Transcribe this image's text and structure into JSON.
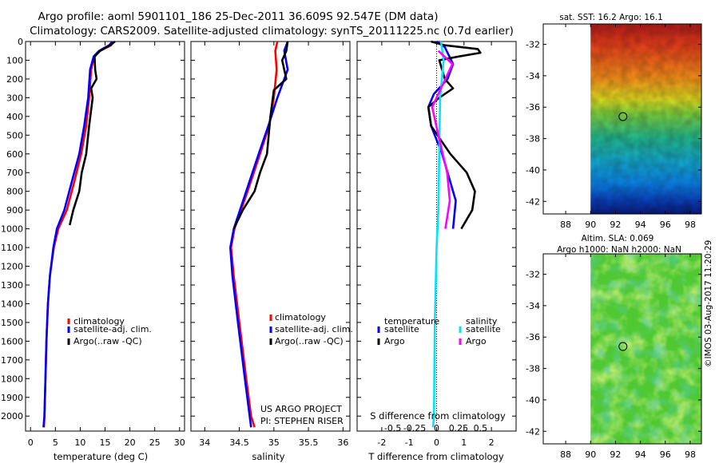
{
  "title_line1": "Argo profile: aoml 5901101_186 25-Dec-2011 36.609S 92.547E (DM data)",
  "title_line2": "Climatology: CARS2009. Satellite-adjusted climatology: synTS_20111225.nc (0.7d earlier)",
  "credit": "©IMOS 03-Aug-2017 11:20:29",
  "colors": {
    "climatology": "#ff0000",
    "satellite": "#0000ff",
    "argo": "#000000",
    "sat_salinity": "#00e5ff",
    "argo_salinity": "#ff00ff"
  },
  "chart_data": [
    {
      "id": "temperature",
      "type": "line",
      "xlabel": "temperature (deg C)",
      "xlim": [
        -1,
        31
      ],
      "ylim": [
        2080,
        0
      ],
      "y_ticks": [
        0,
        100,
        200,
        300,
        400,
        500,
        600,
        700,
        800,
        900,
        1000,
        1100,
        1200,
        1300,
        1400,
        1500,
        1600,
        1700,
        1800,
        1900,
        2000
      ],
      "x_ticks": [
        0,
        5,
        10,
        15,
        20,
        25,
        30
      ],
      "legend": [
        "climatology",
        "satellite-adj. clim.",
        "Argo(..raw -QC)"
      ],
      "series": [
        {
          "name": "climatology",
          "color": "#ff0000",
          "points": [
            [
              16.8,
              0
            ],
            [
              16.2,
              20
            ],
            [
              14,
              50
            ],
            [
              12.8,
              80
            ],
            [
              12.2,
              150
            ],
            [
              11.8,
              300
            ],
            [
              11.2,
              450
            ],
            [
              10.2,
              600
            ],
            [
              8.8,
              750
            ],
            [
              7.3,
              900
            ],
            [
              5.6,
              1000
            ],
            [
              4.7,
              1100
            ],
            [
              3.9,
              1250
            ],
            [
              3.5,
              1400
            ],
            [
              3.2,
              1600
            ],
            [
              3,
              1800
            ],
            [
              2.8,
              2000
            ],
            [
              2.7,
              2060
            ]
          ]
        },
        {
          "name": "satellite-adj. clim.",
          "color": "#0000ff",
          "points": [
            [
              16.5,
              0
            ],
            [
              15.8,
              20
            ],
            [
              13.8,
              50
            ],
            [
              12.7,
              80
            ],
            [
              12,
              150
            ],
            [
              11.6,
              300
            ],
            [
              10.8,
              450
            ],
            [
              9.8,
              600
            ],
            [
              8.3,
              750
            ],
            [
              6.8,
              900
            ],
            [
              5.3,
              1000
            ],
            [
              4.6,
              1100
            ],
            [
              3.9,
              1250
            ],
            [
              3.5,
              1400
            ],
            [
              3.2,
              1600
            ],
            [
              3,
              1800
            ],
            [
              2.8,
              2000
            ],
            [
              2.6,
              2060
            ]
          ]
        },
        {
          "name": "Argo(..raw -QC)",
          "color": "#000000",
          "points": [
            [
              17,
              0
            ],
            [
              16,
              20
            ],
            [
              14,
              50
            ],
            [
              12.9,
              80
            ],
            [
              13,
              150
            ],
            [
              13.3,
              200
            ],
            [
              12.2,
              250
            ],
            [
              12.5,
              300
            ],
            [
              11.8,
              450
            ],
            [
              11.2,
              600
            ],
            [
              10.3,
              700
            ],
            [
              9.8,
              800
            ],
            [
              8.6,
              900
            ],
            [
              7.9,
              980
            ]
          ]
        }
      ]
    },
    {
      "id": "salinity",
      "type": "line",
      "xlabel": "salinity",
      "xlim": [
        33.8,
        36.1
      ],
      "ylim": [
        2080,
        0
      ],
      "x_ticks": [
        34,
        34.5,
        35,
        35.5,
        36
      ],
      "legend": [
        "climatology",
        "satellite-adj. clim.",
        "Argo(..raw -QC)"
      ],
      "annotation": [
        "US ARGO PROJECT",
        "PI: STEPHEN RISER"
      ],
      "series": [
        {
          "name": "climatology",
          "color": "#ff0000",
          "points": [
            [
              35.05,
              0
            ],
            [
              35.02,
              50
            ],
            [
              35.04,
              150
            ],
            [
              35.0,
              300
            ],
            [
              34.93,
              450
            ],
            [
              34.8,
              600
            ],
            [
              34.62,
              800
            ],
            [
              34.43,
              1000
            ],
            [
              34.38,
              1100
            ],
            [
              34.42,
              1250
            ],
            [
              34.5,
              1500
            ],
            [
              34.6,
              1800
            ],
            [
              34.67,
              2000
            ],
            [
              34.72,
              2060
            ]
          ]
        },
        {
          "name": "satellite-adj. clim.",
          "color": "#0000ff",
          "points": [
            [
              35.2,
              0
            ],
            [
              35.15,
              50
            ],
            [
              35.2,
              150
            ],
            [
              35.05,
              300
            ],
            [
              34.92,
              450
            ],
            [
              34.78,
              600
            ],
            [
              34.6,
              800
            ],
            [
              34.42,
              1000
            ],
            [
              34.37,
              1100
            ],
            [
              34.4,
              1250
            ],
            [
              34.48,
              1500
            ],
            [
              34.58,
              1800
            ],
            [
              34.65,
              2000
            ],
            [
              34.67,
              2060
            ]
          ]
        },
        {
          "name": "Argo(..raw -QC)",
          "color": "#000000",
          "points": [
            [
              35.2,
              0
            ],
            [
              35.18,
              50
            ],
            [
              35.12,
              100
            ],
            [
              35.18,
              200
            ],
            [
              35.0,
              260
            ],
            [
              34.95,
              400
            ],
            [
              34.9,
              600
            ],
            [
              34.8,
              700
            ],
            [
              34.72,
              800
            ],
            [
              34.55,
              900
            ],
            [
              34.42,
              1000
            ]
          ]
        }
      ]
    },
    {
      "id": "differences",
      "type": "line",
      "xlabel": "T difference from climatology",
      "x2label": "S difference from climatology",
      "xlim": [
        -2.9,
        2.9
      ],
      "ylim": [
        2080,
        0
      ],
      "x_ticks": [
        -2,
        -1,
        0,
        1,
        2
      ],
      "s_ticks": [
        -0.5,
        -0.25,
        0,
        0.25,
        0.5
      ],
      "legend_headers": [
        "temperature",
        "salinity"
      ],
      "legend": [
        "satellite",
        "Argo",
        "satellite",
        "Argo"
      ],
      "series": [
        {
          "name": "temperature satellite",
          "color": "#0000ff",
          "points": [
            [
              0,
              0
            ],
            [
              0.3,
              30
            ],
            [
              0.4,
              60
            ],
            [
              0.6,
              120
            ],
            [
              0.4,
              200
            ],
            [
              -0.1,
              280
            ],
            [
              -0.3,
              350
            ],
            [
              -0.2,
              450
            ],
            [
              0.2,
              600
            ],
            [
              0.5,
              750
            ],
            [
              0.7,
              850
            ],
            [
              0.6,
              1000
            ]
          ]
        },
        {
          "name": "temperature Argo",
          "color": "#000000",
          "points": [
            [
              -0.2,
              0
            ],
            [
              0.3,
              20
            ],
            [
              1.5,
              40
            ],
            [
              1.6,
              60
            ],
            [
              0.8,
              80
            ],
            [
              0.1,
              100
            ],
            [
              0.3,
              200
            ],
            [
              0.6,
              250
            ],
            [
              0.1,
              300
            ],
            [
              -0.3,
              350
            ],
            [
              -0.2,
              450
            ],
            [
              0.5,
              600
            ],
            [
              1.1,
              700
            ],
            [
              1.4,
              800
            ],
            [
              1.3,
              900
            ],
            [
              0.9,
              1000
            ]
          ]
        },
        {
          "name": "salinity satellite",
          "color": "#00e5ff",
          "points": [
            [
              0.05,
              0
            ],
            [
              0.08,
              100
            ],
            [
              0.04,
              300
            ],
            [
              0.03,
              600
            ],
            [
              0.02,
              900
            ],
            [
              0,
              1100
            ],
            [
              -0.02,
              1500
            ],
            [
              -0.03,
              2000
            ],
            [
              -0.04,
              2060
            ]
          ]
        },
        {
          "name": "salinity Argo",
          "color": "#ff00ff",
          "points": [
            [
              0.02,
              50
            ],
            [
              0.18,
              120
            ],
            [
              0.05,
              250
            ],
            [
              -0.05,
              350
            ],
            [
              0.02,
              500
            ],
            [
              0.12,
              700
            ],
            [
              0.15,
              850
            ],
            [
              0.1,
              1000
            ]
          ]
        }
      ]
    },
    {
      "id": "sst_map",
      "type": "heatmap",
      "title": "sat. SST: 16.2  Argo: 16.1",
      "x_ticks": [
        88,
        90,
        92,
        94,
        96,
        98
      ],
      "y_ticks": [
        -32,
        -34,
        -36,
        -38,
        -40,
        -42
      ],
      "xlim": [
        86.2,
        98.9
      ],
      "ylim": [
        -42.8,
        -30.7
      ],
      "data_xlim": [
        90,
        98.9
      ],
      "marker": [
        92.6,
        -36.6
      ]
    },
    {
      "id": "sla_map",
      "type": "heatmap",
      "title": "Altim. SLA: 0.069",
      "subtitle": "Argo h1000: NaN h2000: NaN",
      "x_ticks": [
        88,
        90,
        92,
        94,
        96,
        98
      ],
      "y_ticks": [
        -32,
        -34,
        -36,
        -38,
        -40,
        -42
      ],
      "xlim": [
        86.2,
        98.9
      ],
      "ylim": [
        -42.8,
        -30.7
      ],
      "data_xlim": [
        90,
        98.9
      ],
      "marker": [
        92.6,
        -36.6
      ]
    }
  ]
}
